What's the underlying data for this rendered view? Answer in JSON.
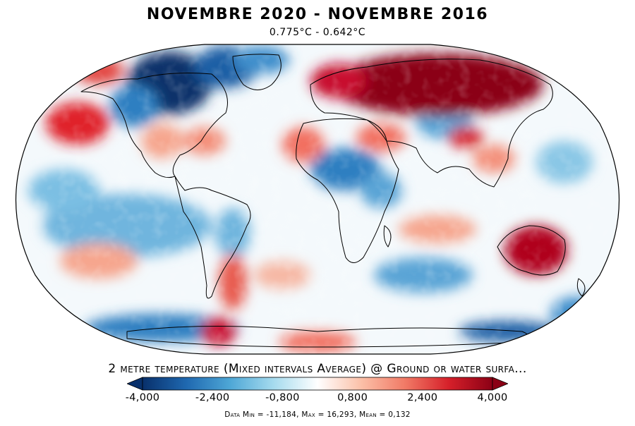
{
  "header": {
    "title": "NOVEMBRE 2020 - NOVEMBRE 2016",
    "subtitle": "0.775°C - 0.642°C"
  },
  "variable_label": "2 metre temperature (Mixed intervals Average) @ Ground or water surfa...",
  "colorbar": {
    "ticks": [
      "-4,000",
      "-2,400",
      "-0,800",
      "0,800",
      "2,400",
      "4,000"
    ],
    "tick_values": [
      -4.0,
      -2.4,
      -0.8,
      0.8,
      2.4,
      4.0
    ],
    "range": [
      -4.0,
      4.0
    ],
    "colors": [
      "#08306b",
      "#1f68b0",
      "#4ea7d6",
      "#a6dbee",
      "#ffffff",
      "#fbc0a8",
      "#f17a66",
      "#d6202a",
      "#8b0015"
    ],
    "extend": "both"
  },
  "stats": "Data Min = -11,184, Max = 16,293, Mean = 0,132",
  "map": {
    "projection": "robinson",
    "field": "temperature anomaly",
    "palette": {
      "strong_cold": "#08306b",
      "cold": "#2f7fc1",
      "cool": "#9ed1ea",
      "neutral": "#ffffff",
      "warm": "#f7a48c",
      "hot": "#e03030",
      "strong_hot": "#8b0015"
    }
  }
}
